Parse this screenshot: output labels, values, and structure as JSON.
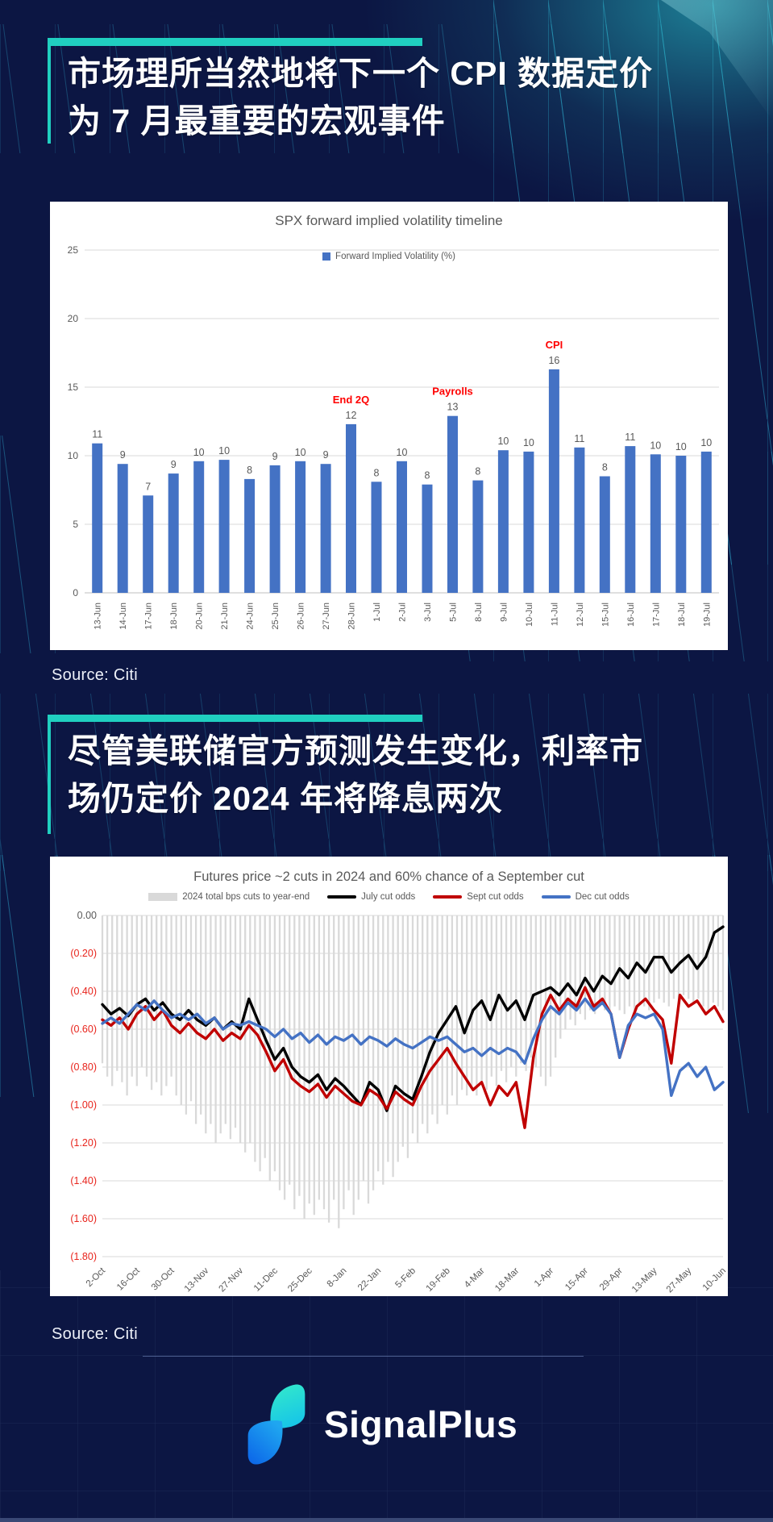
{
  "page": {
    "background_color": "#0C1643",
    "accent_color": "#20CFC0"
  },
  "section1": {
    "headline_line1": "市场理所当然地将下一个 CPI 数据定价",
    "headline_line2": "为 7 月最重要的宏观事件",
    "source": "Source: Citi"
  },
  "section2": {
    "headline_line1": "尽管美联储官方预测发生变化，利率市",
    "headline_line2": "场仍定价 2024 年将降息两次",
    "source": "Source: Citi"
  },
  "footer": {
    "brand": "SignalPlus",
    "logo_teal": "#2FE9C8",
    "logo_blue": "#0B63E8"
  },
  "chart_data": [
    {
      "type": "bar",
      "title": "SPX forward implied volatility timeline",
      "legend": "Forward Implied Volatility (%)",
      "bar_color": "#4472C4",
      "label_color": "#595959",
      "annotation_color": "#FF0000",
      "ylim": [
        0,
        25
      ],
      "yticks": [
        0,
        5,
        10,
        15,
        20,
        25
      ],
      "categories": [
        "13-Jun",
        "14-Jun",
        "17-Jun",
        "18-Jun",
        "20-Jun",
        "21-Jun",
        "24-Jun",
        "25-Jun",
        "26-Jun",
        "27-Jun",
        "28-Jun",
        "1-Jul",
        "2-Jul",
        "3-Jul",
        "5-Jul",
        "8-Jul",
        "9-Jul",
        "10-Jul",
        "11-Jul",
        "12-Jul",
        "15-Jul",
        "16-Jul",
        "17-Jul",
        "18-Jul",
        "19-Jul"
      ],
      "labels": [
        11,
        9,
        7,
        9,
        10,
        10,
        8,
        9,
        10,
        9,
        12,
        8,
        10,
        8,
        13,
        8,
        10,
        10,
        16,
        11,
        8,
        11,
        10,
        10,
        10
      ],
      "values": [
        10.9,
        9.4,
        7.1,
        8.7,
        9.6,
        9.7,
        8.3,
        9.3,
        9.6,
        9.4,
        12.3,
        8.1,
        9.6,
        7.9,
        12.9,
        8.2,
        10.4,
        10.3,
        16.3,
        10.6,
        8.5,
        10.7,
        10.1,
        10.0,
        10.3
      ],
      "annotations": [
        {
          "text": "End 2Q",
          "index": 10,
          "color": "#FF0000"
        },
        {
          "text": "Payrolls",
          "index": 14,
          "color": "#FF0000"
        },
        {
          "text": "CPI",
          "index": 18,
          "color": "#FF0000"
        }
      ]
    },
    {
      "type": "line",
      "title": "Futures price ~2 cuts in 2024 and 60% chance of a September cut",
      "ylim": [
        -1.9,
        0
      ],
      "yticks_labels": [
        "0.00",
        "(0.20)",
        "(0.40)",
        "(0.60)",
        "(0.80)",
        "(1.00)",
        "(1.20)",
        "(1.40)",
        "(1.60)",
        "(1.80)"
      ],
      "ytick_zero_color": "#595959",
      "ytick_negative_color": "#E8241C",
      "x_tick_labels": [
        "2-Oct",
        "16-Oct",
        "30-Oct",
        "13-Nov",
        "27-Nov",
        "11-Dec",
        "25-Dec",
        "8-Jan",
        "22-Jan",
        "5-Feb",
        "19-Feb",
        "4-Mar",
        "18-Mar",
        "1-Apr",
        "15-Apr",
        "29-Apr",
        "13-May",
        "27-May",
        "10-Jun"
      ],
      "x_tick_step_days": 14,
      "x_range_days": [
        0,
        252
      ],
      "bars": {
        "name": "2024 total bps cuts to year-end",
        "color": "#D9D9D9",
        "step_days": 2,
        "values": [
          -0.78,
          -0.85,
          -0.9,
          -0.82,
          -0.88,
          -0.95,
          -0.85,
          -0.9,
          -0.8,
          -0.85,
          -0.92,
          -0.88,
          -0.95,
          -0.9,
          -0.85,
          -0.95,
          -1.0,
          -1.05,
          -0.98,
          -1.1,
          -1.05,
          -1.15,
          -1.1,
          -1.2,
          -1.15,
          -1.1,
          -1.18,
          -1.12,
          -1.2,
          -1.25,
          -1.2,
          -1.3,
          -1.35,
          -1.28,
          -1.4,
          -1.35,
          -1.45,
          -1.5,
          -1.42,
          -1.55,
          -1.48,
          -1.6,
          -1.52,
          -1.58,
          -1.5,
          -1.55,
          -1.62,
          -1.5,
          -1.65,
          -1.55,
          -1.45,
          -1.58,
          -1.5,
          -1.4,
          -1.52,
          -1.45,
          -1.35,
          -1.42,
          -1.3,
          -1.38,
          -1.3,
          -1.22,
          -1.28,
          -1.15,
          -1.2,
          -1.1,
          -1.15,
          -1.05,
          -1.1,
          -1.0,
          -1.05,
          -0.95,
          -1.0,
          -0.92,
          -0.95,
          -0.9,
          -0.95,
          -0.88,
          -0.92,
          -0.85,
          -0.9,
          -0.82,
          -0.88,
          -0.8,
          -0.85,
          -0.78,
          -0.82,
          -0.75,
          -0.8,
          -0.85,
          -0.9,
          -0.85,
          -0.75,
          -0.65,
          -0.6,
          -0.55,
          -0.58,
          -0.52,
          -0.55,
          -0.5,
          -0.52,
          -0.48,
          -0.5,
          -0.52,
          -0.48,
          -0.5,
          -0.52,
          -0.48,
          -0.5,
          -0.46,
          -0.48,
          -0.5,
          -0.46,
          -0.44,
          -0.46,
          -0.48,
          -0.44,
          -0.46,
          -0.42,
          -0.44,
          -0.46,
          -0.44,
          -0.48,
          -0.5,
          -0.46,
          -0.48,
          -0.5
        ]
      },
      "series": [
        {
          "name": "July cut odds",
          "color": "#000000",
          "step_days": 3.5,
          "values": [
            -0.47,
            -0.52,
            -0.49,
            -0.53,
            -0.47,
            -0.44,
            -0.5,
            -0.46,
            -0.52,
            -0.55,
            -0.5,
            -0.55,
            -0.58,
            -0.54,
            -0.6,
            -0.56,
            -0.6,
            -0.44,
            -0.55,
            -0.66,
            -0.76,
            -0.7,
            -0.8,
            -0.85,
            -0.88,
            -0.84,
            -0.92,
            -0.86,
            -0.9,
            -0.95,
            -1.0,
            -0.88,
            -0.92,
            -1.03,
            -0.9,
            -0.94,
            -0.97,
            -0.85,
            -0.72,
            -0.62,
            -0.55,
            -0.48,
            -0.62,
            -0.5,
            -0.45,
            -0.55,
            -0.42,
            -0.5,
            -0.45,
            -0.55,
            -0.42,
            -0.4,
            -0.38,
            -0.42,
            -0.36,
            -0.42,
            -0.33,
            -0.4,
            -0.32,
            -0.36,
            -0.28,
            -0.33,
            -0.25,
            -0.3,
            -0.22,
            -0.22,
            -0.3,
            -0.25,
            -0.21,
            -0.28,
            -0.22,
            -0.09,
            -0.06
          ]
        },
        {
          "name": "Sept cut odds",
          "color": "#C00000",
          "step_days": 3.5,
          "values": [
            -0.55,
            -0.58,
            -0.54,
            -0.6,
            -0.52,
            -0.48,
            -0.55,
            -0.5,
            -0.58,
            -0.62,
            -0.57,
            -0.62,
            -0.65,
            -0.6,
            -0.66,
            -0.62,
            -0.65,
            -0.58,
            -0.63,
            -0.72,
            -0.82,
            -0.76,
            -0.86,
            -0.9,
            -0.93,
            -0.89,
            -0.96,
            -0.9,
            -0.94,
            -0.98,
            -1.0,
            -0.92,
            -0.95,
            -1.02,
            -0.93,
            -0.97,
            -1.0,
            -0.9,
            -0.82,
            -0.76,
            -0.7,
            -0.78,
            -0.85,
            -0.92,
            -0.88,
            -1.0,
            -0.9,
            -0.95,
            -0.88,
            -1.12,
            -0.75,
            -0.52,
            -0.42,
            -0.5,
            -0.44,
            -0.48,
            -0.38,
            -0.48,
            -0.44,
            -0.52,
            -0.75,
            -0.6,
            -0.48,
            -0.44,
            -0.5,
            -0.55,
            -0.78,
            -0.42,
            -0.48,
            -0.45,
            -0.52,
            -0.48,
            -0.56
          ]
        },
        {
          "name": "Dec cut odds",
          "color": "#4472C4",
          "step_days": 3.5,
          "values": [
            -0.57,
            -0.54,
            -0.57,
            -0.52,
            -0.47,
            -0.5,
            -0.45,
            -0.5,
            -0.54,
            -0.52,
            -0.55,
            -0.52,
            -0.57,
            -0.54,
            -0.6,
            -0.57,
            -0.58,
            -0.56,
            -0.58,
            -0.6,
            -0.64,
            -0.6,
            -0.65,
            -0.62,
            -0.67,
            -0.63,
            -0.68,
            -0.64,
            -0.66,
            -0.63,
            -0.68,
            -0.64,
            -0.66,
            -0.69,
            -0.65,
            -0.68,
            -0.7,
            -0.67,
            -0.64,
            -0.66,
            -0.64,
            -0.68,
            -0.72,
            -0.7,
            -0.74,
            -0.7,
            -0.73,
            -0.7,
            -0.72,
            -0.78,
            -0.65,
            -0.55,
            -0.48,
            -0.52,
            -0.46,
            -0.5,
            -0.44,
            -0.5,
            -0.46,
            -0.52,
            -0.75,
            -0.58,
            -0.52,
            -0.54,
            -0.52,
            -0.6,
            -0.95,
            -0.82,
            -0.78,
            -0.85,
            -0.8,
            -0.92,
            -0.88
          ]
        }
      ]
    }
  ]
}
